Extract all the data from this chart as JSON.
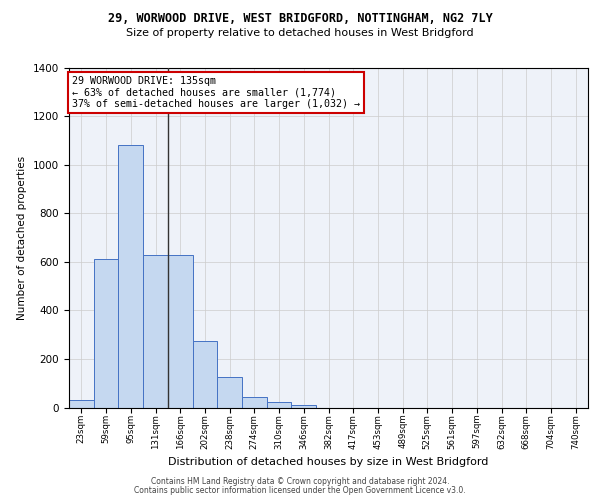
{
  "title_line1": "29, WORWOOD DRIVE, WEST BRIDGFORD, NOTTINGHAM, NG2 7LY",
  "title_line2": "Size of property relative to detached houses in West Bridgford",
  "xlabel": "Distribution of detached houses by size in West Bridgford",
  "ylabel": "Number of detached properties",
  "categories": [
    "23sqm",
    "59sqm",
    "95sqm",
    "131sqm",
    "166sqm",
    "202sqm",
    "238sqm",
    "274sqm",
    "310sqm",
    "346sqm",
    "382sqm",
    "417sqm",
    "453sqm",
    "489sqm",
    "525sqm",
    "561sqm",
    "597sqm",
    "632sqm",
    "668sqm",
    "704sqm",
    "740sqm"
  ],
  "values": [
    30,
    610,
    1080,
    630,
    630,
    275,
    125,
    42,
    22,
    12,
    0,
    0,
    0,
    0,
    0,
    0,
    0,
    0,
    0,
    0,
    0
  ],
  "bar_color": "#c5d8f0",
  "bar_edge_color": "#4472c4",
  "annotation_text_line1": "29 WORWOOD DRIVE: 135sqm",
  "annotation_text_line2": "← 63% of detached houses are smaller (1,774)",
  "annotation_text_line3": "37% of semi-detached houses are larger (1,032) →",
  "annotation_box_color": "#ffffff",
  "annotation_box_edge_color": "#cc0000",
  "vline_color": "#333333",
  "ylim": [
    0,
    1400
  ],
  "yticks": [
    0,
    200,
    400,
    600,
    800,
    1000,
    1200,
    1400
  ],
  "grid_color": "#cccccc",
  "bg_color": "#eef2f9",
  "footer_line1": "Contains HM Land Registry data © Crown copyright and database right 2024.",
  "footer_line2": "Contains public sector information licensed under the Open Government Licence v3.0."
}
